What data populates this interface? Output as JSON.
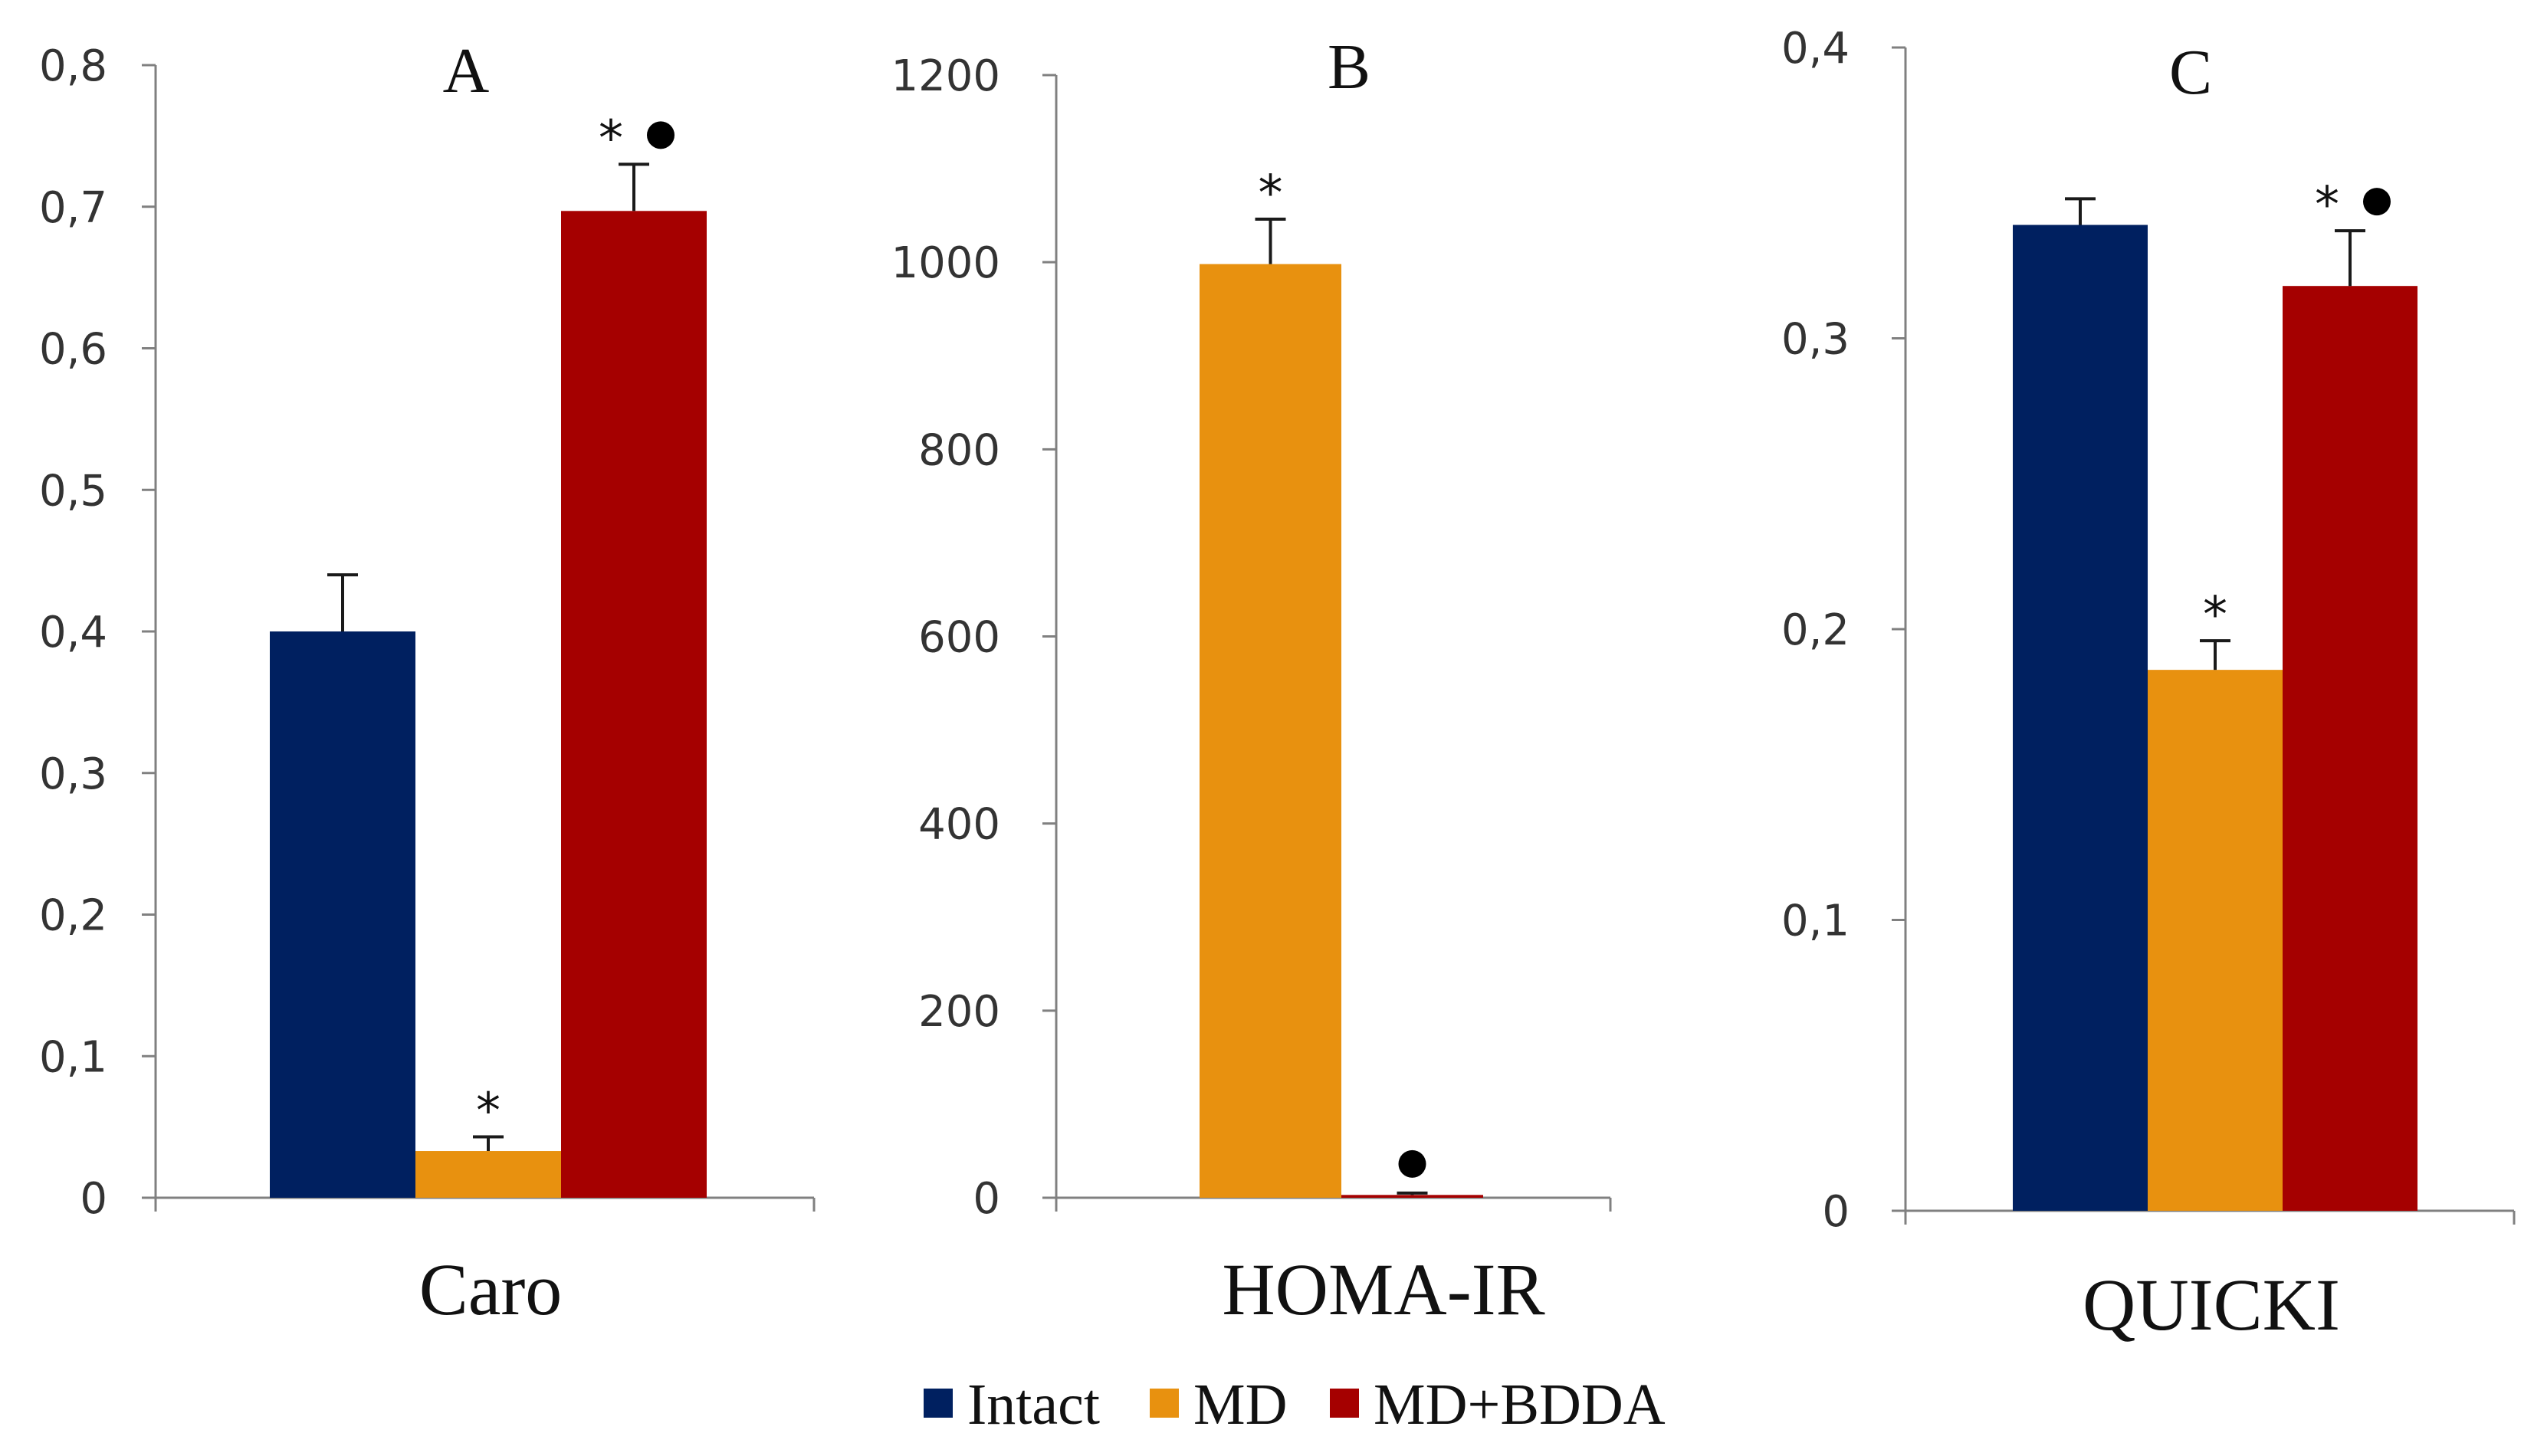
{
  "chart_data": [
    {
      "type": "bar",
      "title": "A",
      "categories": [
        "Caro"
      ],
      "series": [
        {
          "name": "Intact",
          "values": [
            0.4
          ],
          "errors": [
            0.04
          ],
          "marks": [
            ""
          ]
        },
        {
          "name": "MD",
          "values": [
            0.033
          ],
          "errors": [
            0.01
          ],
          "marks": [
            "*"
          ]
        },
        {
          "name": "MD+BDDA",
          "values": [
            0.697
          ],
          "errors": [
            0.033
          ],
          "marks": [
            "*●"
          ]
        }
      ],
      "ylim": [
        0,
        0.8
      ],
      "yticks": [
        "0",
        "0,1",
        "0,2",
        "0,3",
        "0,4",
        "0,5",
        "0,6",
        "0,7",
        "0,8"
      ],
      "xlabel": "",
      "ylabel": ""
    },
    {
      "type": "bar",
      "title": "B",
      "categories": [
        "HOMA-IR"
      ],
      "series": [
        {
          "name": "Intact",
          "values": [
            0
          ],
          "errors": [
            0
          ],
          "marks": [
            ""
          ]
        },
        {
          "name": "MD",
          "values": [
            998
          ],
          "errors": [
            48
          ],
          "marks": [
            "*"
          ]
        },
        {
          "name": "MD+BDDA",
          "values": [
            3
          ],
          "errors": [
            2
          ],
          "marks": [
            "●"
          ]
        }
      ],
      "ylim": [
        0,
        1200
      ],
      "yticks": [
        "0",
        "200",
        "400",
        "600",
        "800",
        "1000",
        "1200"
      ],
      "xlabel": "",
      "ylabel": ""
    },
    {
      "type": "bar",
      "title": "C",
      "categories": [
        "QUICKI"
      ],
      "series": [
        {
          "name": "Intact",
          "values": [
            0.339
          ],
          "errors": [
            0.009
          ],
          "marks": [
            ""
          ]
        },
        {
          "name": "MD",
          "values": [
            0.186
          ],
          "errors": [
            0.01
          ],
          "marks": [
            "*"
          ]
        },
        {
          "name": "MD+BDDA",
          "values": [
            0.318
          ],
          "errors": [
            0.019
          ],
          "marks": [
            "*●"
          ]
        }
      ],
      "ylim": [
        0,
        0.4
      ],
      "yticks": [
        "0",
        "0,1",
        "0,2",
        "0,3",
        "0,4"
      ],
      "xlabel": "",
      "ylabel": ""
    }
  ],
  "legend": {
    "placement": "bottom-center",
    "items": [
      {
        "name": "Intact",
        "color": "#002060"
      },
      {
        "name": "MD",
        "color": "#E8910F"
      },
      {
        "name": "MD+BDDA",
        "color": "#A50000"
      }
    ]
  },
  "colors": {
    "Intact": "#002060",
    "MD": "#E8910F",
    "MD+BDDA": "#A50000"
  }
}
